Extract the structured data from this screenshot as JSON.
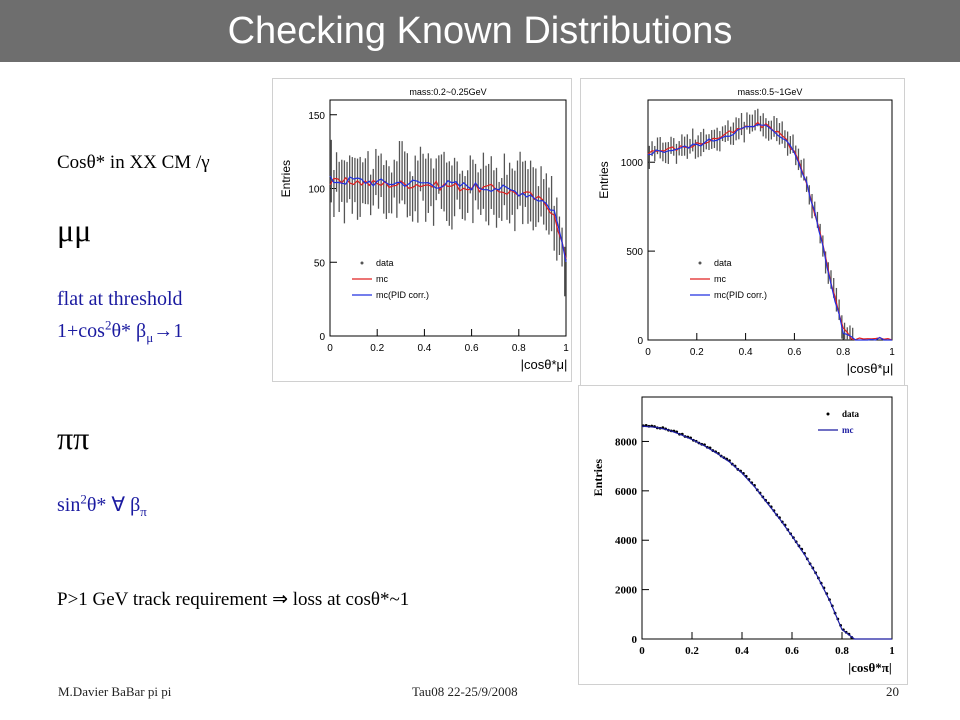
{
  "slide": {
    "title": "Checking Known Distributions",
    "intro": "Cosθ* in XX CM /γ",
    "mumu_header": "μμ",
    "mumu_line1": "flat at threshold",
    "mumu_line2_a": "1+cos",
    "mumu_line2_b": "2",
    "mumu_line2_c": "θ*  β",
    "mumu_line2_d": "μ",
    "mumu_line2_e": "→1",
    "pipi_header": "ππ",
    "pipi_line_a": "sin",
    "pipi_line_b": "2",
    "pipi_line_c": "θ*    ∀ β",
    "pipi_line_d": "π",
    "requirement": "P>1 GeV track requirement ⇒ loss at cosθ*~1"
  },
  "footer": {
    "author": "M.Davier    BaBar pi pi",
    "conference": "Tau08  22-25/9/2008",
    "page": "20"
  },
  "chart_data": [
    {
      "type": "line",
      "title": "mass:0.2~0.25GeV",
      "ylabel": "Entries",
      "xlabel": "|cosθ*μ|",
      "xlim": [
        0,
        1
      ],
      "ylim": [
        0,
        160
      ],
      "xticks": [
        "0",
        "0.2",
        "0.4",
        "0.6",
        "0.8",
        "1"
      ],
      "yticks": [
        "0",
        "50",
        "100",
        "150"
      ],
      "legend": [
        "data",
        "mc",
        "mc(PID corr.)"
      ],
      "legend_position": "bottom-left",
      "colors": {
        "data": "#555555",
        "mc": "#e02020",
        "mc_pid": "#2030e0"
      },
      "x": [
        0.0,
        0.05,
        0.1,
        0.15,
        0.2,
        0.25,
        0.3,
        0.35,
        0.4,
        0.45,
        0.5,
        0.55,
        0.6,
        0.65,
        0.7,
        0.75,
        0.8,
        0.85,
        0.9,
        0.95,
        1.0
      ],
      "series": [
        {
          "name": "data",
          "values": [
            105,
            103,
            110,
            104,
            102,
            101,
            106,
            99,
            108,
            100,
            104,
            99,
            106,
            97,
            103,
            96,
            101,
            94,
            90,
            82,
            46
          ]
        },
        {
          "name": "mc",
          "values": [
            104,
            104,
            105,
            104,
            103,
            103,
            103,
            103,
            103,
            102,
            102,
            101,
            101,
            100,
            100,
            98,
            97,
            95,
            91,
            84,
            52
          ]
        },
        {
          "name": "mc(PID corr.)",
          "values": [
            106,
            105,
            106,
            105,
            104,
            104,
            104,
            104,
            104,
            103,
            103,
            102,
            102,
            101,
            101,
            99,
            98,
            96,
            92,
            85,
            53
          ]
        }
      ]
    },
    {
      "type": "line",
      "title": "mass:0.5~1GeV",
      "ylabel": "Entries",
      "xlabel": "|cosθ*μ|",
      "xlim": [
        0,
        1
      ],
      "ylim": [
        0,
        1350
      ],
      "xticks": [
        "0",
        "0.2",
        "0.4",
        "0.6",
        "0.8",
        "1"
      ],
      "yticks": [
        "0",
        "500",
        "1000"
      ],
      "legend": [
        "data",
        "mc",
        "mc(PID corr.)"
      ],
      "legend_position": "center-right",
      "colors": {
        "data": "#555555",
        "mc": "#e02020",
        "mc_pid": "#2030e0"
      },
      "x": [
        0.0,
        0.05,
        0.1,
        0.15,
        0.2,
        0.25,
        0.3,
        0.35,
        0.4,
        0.45,
        0.5,
        0.55,
        0.6,
        0.65,
        0.7,
        0.75,
        0.8,
        0.85,
        0.9,
        0.95,
        1.0
      ],
      "series": [
        {
          "name": "data",
          "values": [
            1050,
            1080,
            1070,
            1090,
            1110,
            1120,
            1150,
            1180,
            1200,
            1220,
            1210,
            1160,
            1070,
            900,
            640,
            330,
            60,
            0,
            0,
            0,
            0
          ]
        },
        {
          "name": "mc",
          "values": [
            1060,
            1065,
            1075,
            1085,
            1100,
            1120,
            1145,
            1170,
            1195,
            1210,
            1200,
            1150,
            1060,
            890,
            630,
            320,
            55,
            0,
            0,
            0,
            0
          ]
        },
        {
          "name": "mc(PID corr.)",
          "values": [
            1055,
            1062,
            1072,
            1082,
            1098,
            1118,
            1142,
            1168,
            1192,
            1206,
            1196,
            1146,
            1056,
            886,
            626,
            316,
            52,
            0,
            0,
            0,
            0
          ]
        }
      ]
    },
    {
      "type": "line",
      "title": "",
      "ylabel": "Entries",
      "xlabel": "|cosθ*π|",
      "xlim": [
        0,
        1
      ],
      "ylim": [
        0,
        9800
      ],
      "xticks": [
        "0",
        "0.2",
        "0.4",
        "0.6",
        "0.8",
        "1"
      ],
      "yticks": [
        "0",
        "2000",
        "4000",
        "6000",
        "8000"
      ],
      "legend": [
        "data",
        "mc"
      ],
      "legend_position": "top-right",
      "colors": {
        "data": "#000000",
        "mc": "#1a1aa0"
      },
      "x": [
        0.0,
        0.05,
        0.1,
        0.15,
        0.2,
        0.25,
        0.3,
        0.35,
        0.4,
        0.45,
        0.5,
        0.55,
        0.6,
        0.65,
        0.7,
        0.75,
        0.8,
        0.85,
        0.9,
        0.95,
        1.0
      ],
      "series": [
        {
          "name": "data",
          "values": [
            8650,
            8600,
            8500,
            8320,
            8100,
            7850,
            7550,
            7200,
            6750,
            6200,
            5550,
            4900,
            4200,
            3450,
            2600,
            1600,
            400,
            0,
            0,
            0,
            0
          ]
        },
        {
          "name": "mc",
          "values": [
            8620,
            8580,
            8480,
            8300,
            8080,
            7820,
            7520,
            7170,
            6720,
            6170,
            5520,
            4870,
            4170,
            3420,
            2570,
            1570,
            380,
            0,
            0,
            0,
            0
          ]
        }
      ]
    }
  ]
}
